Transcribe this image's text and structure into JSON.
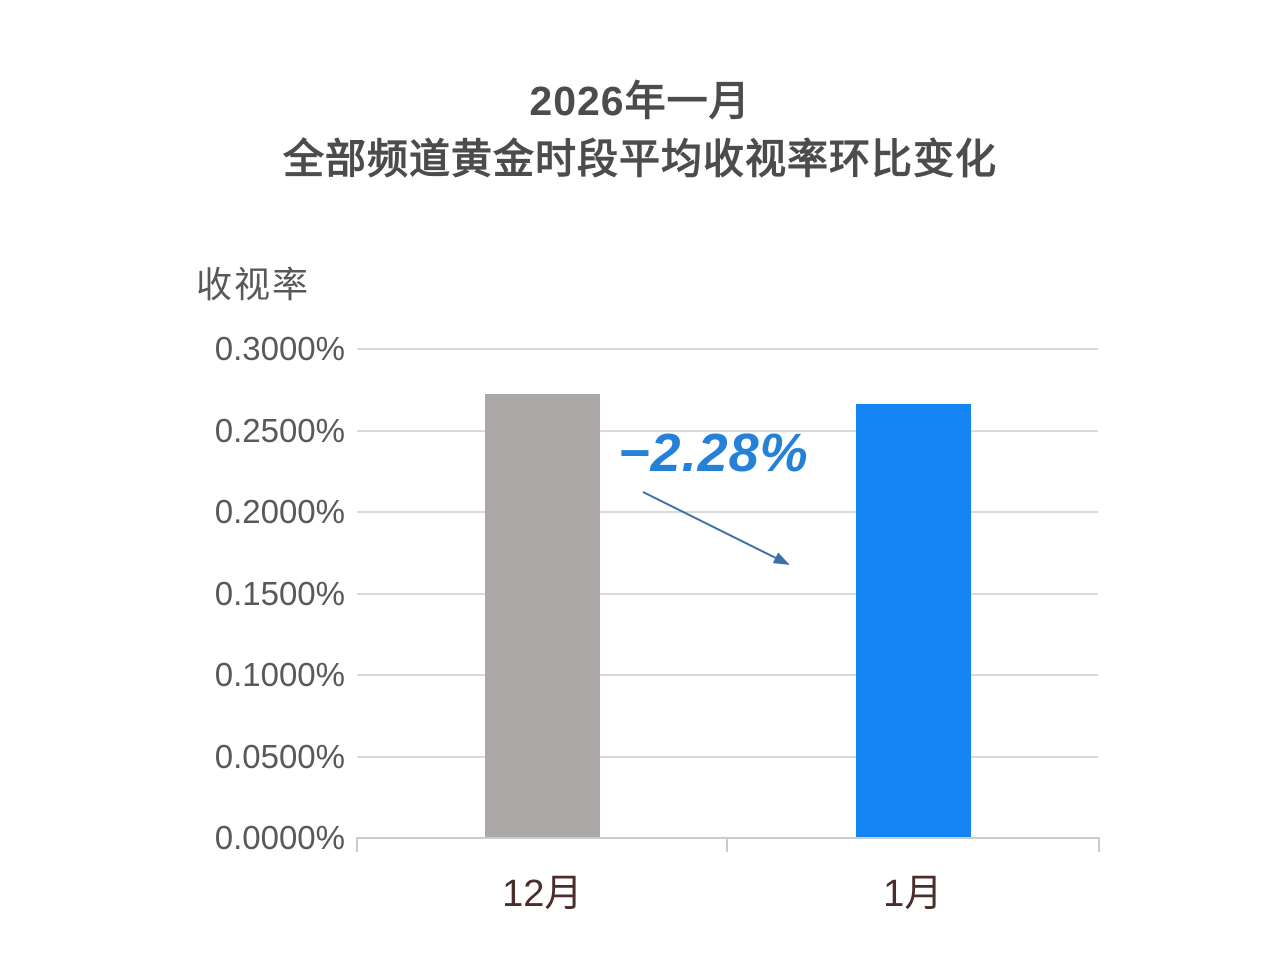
{
  "title": {
    "line1": "2026年一月",
    "line2": "全部频道黄金时段平均收视率环比变化"
  },
  "chart_data": {
    "type": "bar",
    "title": "2026年一月 全部频道黄金时段平均收视率环比变化",
    "ylabel": "收视率",
    "categories": [
      "12月",
      "1月"
    ],
    "values": [
      0.2726,
      0.2664
    ],
    "value_unit": "%",
    "ylim": [
      0,
      0.3
    ],
    "ytick_step": 0.05,
    "ytick_labels": [
      "0.0000%",
      "0.0500%",
      "0.1000%",
      "0.1500%",
      "0.2000%",
      "0.2500%",
      "0.3000%"
    ],
    "grid": true,
    "legend_position": "none",
    "annotation": {
      "text": "−2.28%"
    },
    "bar_colors": [
      "#aca7a7",
      "#1585f6"
    ]
  },
  "colors": {
    "background": "#ffffff",
    "title_text": "#4c4c4c",
    "axis_text": "#595959",
    "category_text": "#4a2d2d",
    "annotation_text": "#2581d8",
    "arrow": "#3b6fa8",
    "gridline": "#dadada",
    "bar_december": "#aca7a7",
    "bar_january": "#1585f6"
  }
}
